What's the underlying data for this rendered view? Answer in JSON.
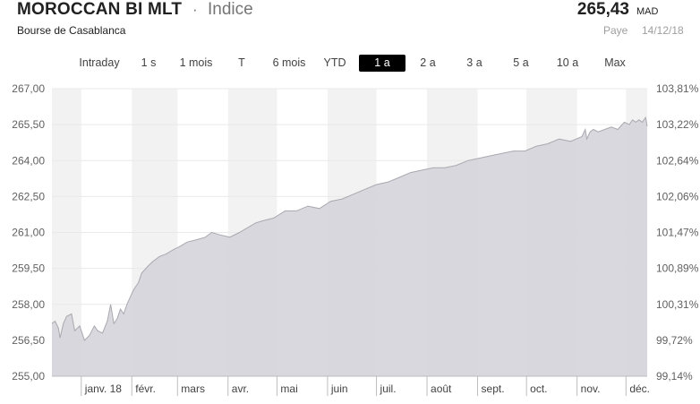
{
  "header": {
    "name": "MOROCCAN BI MLT",
    "separator": "·",
    "type": "Indice",
    "exchange": "Bourse de Casablanca",
    "price": "265,43",
    "currency": "MAD",
    "country": "Paye",
    "date": "14/12/18"
  },
  "ranges": {
    "items": [
      "Intraday",
      "1 s",
      "1 mois",
      "T",
      "6 mois",
      "YTD",
      "1 a",
      "2 a",
      "3 a",
      "5 a",
      "10 a",
      "Max"
    ],
    "selected": "1 a"
  },
  "colors": {
    "area_fill": "#d6d5dc",
    "line": "#a9a8ae",
    "band": "#f2f2f2",
    "selected_bg": "#000000"
  },
  "chart_data": {
    "type": "area",
    "y_left_ticks": [
      "267,00",
      "265,50",
      "264,00",
      "262,50",
      "261,00",
      "259,50",
      "258,00",
      "256,50",
      "255,00"
    ],
    "y_right_ticks": [
      "103,81%",
      "103,22%",
      "102,64%",
      "102,06%",
      "101,47%",
      "100,89%",
      "100,31%",
      "99,72%",
      "99,14%"
    ],
    "ylim": [
      255,
      267
    ],
    "x_tick_labels": [
      "janv. 18",
      "févr.",
      "mars",
      "avr.",
      "mai",
      "juin",
      "juil.",
      "août",
      "sept.",
      "oct.",
      "nov.",
      "déc."
    ],
    "xlim": [
      "2017-12-14",
      "2018-12-14"
    ],
    "x_ticks": [
      "2018-01-01",
      "2018-02-01",
      "2018-03-01",
      "2018-04-01",
      "2018-05-01",
      "2018-06-01",
      "2018-07-01",
      "2018-08-01",
      "2018-09-01",
      "2018-10-01",
      "2018-11-01",
      "2018-12-01"
    ],
    "grid": "alternating month bands",
    "x": [
      "2017-12-14",
      "2017-12-16",
      "2017-12-18",
      "2017-12-19",
      "2017-12-21",
      "2017-12-23",
      "2017-12-26",
      "2017-12-28",
      "2017-12-31",
      "2018-01-03",
      "2018-01-06",
      "2018-01-09",
      "2018-01-11",
      "2018-01-14",
      "2018-01-17",
      "2018-01-19",
      "2018-01-21",
      "2018-01-23",
      "2018-01-25",
      "2018-01-27",
      "2018-01-29",
      "2018-02-02",
      "2018-02-05",
      "2018-02-07",
      "2018-02-11",
      "2018-02-14",
      "2018-02-18",
      "2018-02-22",
      "2018-02-27",
      "2018-03-02",
      "2018-03-07",
      "2018-03-13",
      "2018-03-18",
      "2018-03-22",
      "2018-03-27",
      "2018-04-02",
      "2018-04-08",
      "2018-04-13",
      "2018-04-18",
      "2018-04-23",
      "2018-04-29",
      "2018-05-06",
      "2018-05-13",
      "2018-05-20",
      "2018-05-27",
      "2018-06-03",
      "2018-06-10",
      "2018-06-17",
      "2018-06-24",
      "2018-07-01",
      "2018-07-08",
      "2018-07-15",
      "2018-07-22",
      "2018-07-29",
      "2018-08-05",
      "2018-08-12",
      "2018-08-19",
      "2018-08-26",
      "2018-09-02",
      "2018-09-09",
      "2018-09-16",
      "2018-09-23",
      "2018-09-30",
      "2018-10-07",
      "2018-10-14",
      "2018-10-21",
      "2018-10-28",
      "2018-11-04",
      "2018-11-06",
      "2018-11-07",
      "2018-11-09",
      "2018-11-11",
      "2018-11-14",
      "2018-11-18",
      "2018-11-22",
      "2018-11-26",
      "2018-11-30",
      "2018-12-03",
      "2018-12-05",
      "2018-12-07",
      "2018-12-09",
      "2018-12-11",
      "2018-12-13",
      "2018-12-14"
    ],
    "values": [
      257.2,
      257.3,
      257.0,
      256.6,
      257.2,
      257.5,
      257.6,
      256.9,
      257.1,
      256.5,
      256.7,
      257.1,
      256.9,
      256.8,
      257.3,
      258.0,
      257.2,
      257.4,
      257.8,
      257.6,
      258.0,
      258.6,
      258.9,
      259.3,
      259.6,
      259.8,
      260.0,
      260.1,
      260.3,
      260.4,
      260.6,
      260.7,
      260.8,
      261.0,
      260.9,
      260.8,
      261.0,
      261.2,
      261.4,
      261.5,
      261.6,
      261.9,
      261.9,
      262.1,
      262.0,
      262.3,
      262.4,
      262.6,
      262.8,
      263.0,
      263.1,
      263.3,
      263.5,
      263.6,
      263.7,
      263.7,
      263.8,
      264.0,
      264.1,
      264.2,
      264.3,
      264.4,
      264.4,
      264.6,
      264.7,
      264.9,
      264.8,
      265.0,
      265.3,
      264.9,
      265.2,
      265.3,
      265.2,
      265.3,
      265.4,
      265.3,
      265.6,
      265.5,
      265.7,
      265.6,
      265.7,
      265.6,
      265.8,
      265.43
    ]
  }
}
